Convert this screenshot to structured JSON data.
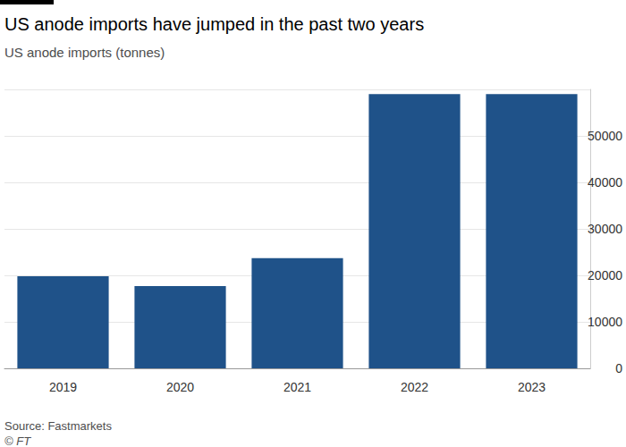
{
  "chart_data": {
    "type": "bar",
    "title": "US anode imports have jumped in the past two years",
    "subtitle": "US anode imports (tonnes)",
    "source": "Source: Fastmarkets",
    "credit": "© FT",
    "categories": [
      "2019",
      "2020",
      "2021",
      "2022",
      "2023"
    ],
    "values": [
      19800,
      17700,
      23700,
      59000,
      59000
    ],
    "color": "#1f5289",
    "ylim": [
      0,
      60000
    ],
    "yticks": [
      0,
      10000,
      20000,
      30000,
      40000,
      50000
    ],
    "grid": true
  }
}
